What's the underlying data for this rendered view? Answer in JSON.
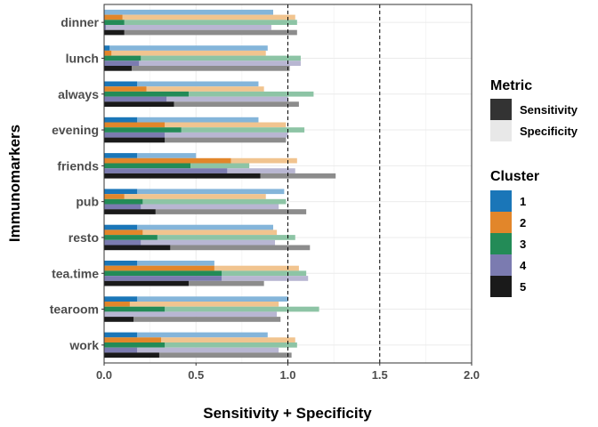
{
  "chart_data": {
    "type": "bar",
    "orientation": "horizontal",
    "stacked": true,
    "xlabel": "Sensitivity + Specificity",
    "ylabel": "Immunomarkers",
    "xlim": [
      0,
      2
    ],
    "xticks": [
      "0.0",
      "0.5",
      "1.0",
      "1.5",
      "2.0"
    ],
    "reference_lines": [
      1.0,
      1.5
    ],
    "grid": true,
    "legend_position": "right",
    "categories": [
      "dinner",
      "lunch",
      "always",
      "evening",
      "friends",
      "pub",
      "resto",
      "tea.time",
      "tearoom",
      "work"
    ],
    "legend_metric": {
      "title": "Metric",
      "items": [
        {
          "label": "Sensitivity",
          "color": "#333333"
        },
        {
          "label": "Specificity",
          "color": "#e8e8e8"
        }
      ]
    },
    "legend_cluster": {
      "title": "Cluster",
      "items": [
        {
          "label": "1",
          "color": "#1a76b8"
        },
        {
          "label": "2",
          "color": "#e2862a"
        },
        {
          "label": "3",
          "color": "#238b57"
        },
        {
          "label": "4",
          "color": "#7b7bb0"
        },
        {
          "label": "5",
          "color": "#1a1a1a"
        }
      ]
    },
    "cluster_light_colors": {
      "1": "#84b5da",
      "2": "#f1c48f",
      "3": "#8dc4a5",
      "4": "#b8b6d2",
      "5": "#8c8c8c"
    },
    "series": [
      {
        "name": "1",
        "sensitivity": [
          0.0,
          0.03,
          0.18,
          0.18,
          0.18,
          0.18,
          0.18,
          0.18,
          0.18,
          0.18
        ],
        "total": [
          0.92,
          0.89,
          0.84,
          0.84,
          0.5,
          0.98,
          0.92,
          0.6,
          1.0,
          0.89
        ]
      },
      {
        "name": "2",
        "sensitivity": [
          0.1,
          0.04,
          0.23,
          0.33,
          0.69,
          0.11,
          0.21,
          0.6,
          0.14,
          0.31
        ],
        "total": [
          1.04,
          0.88,
          0.87,
          0.99,
          1.05,
          0.88,
          0.94,
          1.06,
          0.95,
          1.04
        ]
      },
      {
        "name": "3",
        "sensitivity": [
          0.11,
          0.2,
          0.46,
          0.42,
          0.47,
          0.21,
          0.29,
          0.64,
          0.33,
          0.33
        ],
        "total": [
          1.05,
          1.07,
          1.14,
          1.09,
          0.79,
          0.99,
          1.04,
          1.1,
          1.17,
          1.05
        ]
      },
      {
        "name": "4",
        "sensitivity": [
          0.01,
          0.19,
          0.34,
          0.33,
          0.67,
          0.2,
          0.2,
          0.64,
          0.0,
          0.18
        ],
        "total": [
          0.91,
          1.07,
          1.0,
          1.0,
          1.04,
          0.95,
          0.93,
          1.11,
          0.94,
          0.95
        ]
      },
      {
        "name": "5",
        "sensitivity": [
          0.11,
          0.15,
          0.38,
          0.33,
          0.85,
          0.28,
          0.36,
          0.46,
          0.16,
          0.3
        ],
        "total": [
          1.05,
          1.01,
          1.06,
          0.99,
          1.26,
          1.1,
          1.12,
          0.87,
          0.96,
          1.02
        ]
      }
    ]
  }
}
